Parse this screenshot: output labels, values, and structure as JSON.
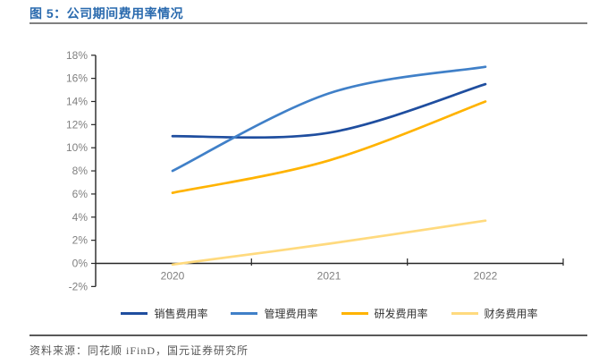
{
  "header": {
    "title": "图 5：公司期间费用率情况"
  },
  "footer": {
    "source": "资料来源：同花顺 iFinD，国元证券研究所"
  },
  "chart_data": {
    "type": "line",
    "title": "公司期间费用率情况",
    "categories": [
      "2020",
      "2021",
      "2022"
    ],
    "series": [
      {
        "name": "销售费用率",
        "values": [
          11.0,
          11.3,
          15.5
        ],
        "color": "#1F4E9F"
      },
      {
        "name": "管理费用率",
        "values": [
          8.0,
          14.7,
          17.0
        ],
        "color": "#4080C8"
      },
      {
        "name": "研发费用率",
        "values": [
          6.1,
          8.9,
          14.0
        ],
        "color": "#FFB300"
      },
      {
        "name": "财务费用率",
        "values": [
          -0.1,
          1.7,
          3.7
        ],
        "color": "#FFDA7E"
      }
    ],
    "xlabel": "",
    "ylabel": "",
    "ylim": [
      -2,
      18
    ],
    "y_step": 2,
    "y_tick_labels": [
      "18%",
      "16%",
      "14%",
      "12%",
      "10%",
      "8%",
      "6%",
      "4%",
      "2%",
      "0%",
      "-2%"
    ],
    "grid": false,
    "smooth": true,
    "legend_position": "bottom",
    "axis_color": "#262626",
    "tick_label_color": "#808080"
  }
}
